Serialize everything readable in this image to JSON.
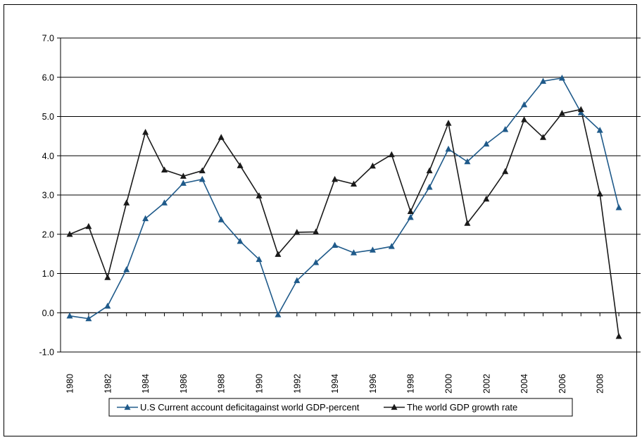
{
  "chart_data": {
    "type": "line",
    "title": "",
    "xlabel": "",
    "ylabel": "",
    "ylim": [
      -1.0,
      7.0
    ],
    "yticks": [
      "-1.0",
      "0.0",
      "1.0",
      "2.0",
      "3.0",
      "4.0",
      "5.0",
      "6.0",
      "7.0"
    ],
    "x": [
      1980,
      1981,
      1982,
      1983,
      1984,
      1985,
      1986,
      1987,
      1988,
      1989,
      1990,
      1991,
      1992,
      1993,
      1994,
      1995,
      1996,
      1997,
      1998,
      1999,
      2000,
      2001,
      2002,
      2003,
      2004,
      2005,
      2006,
      2007,
      2008,
      2009
    ],
    "xtick_labels": [
      "1980",
      "1982",
      "1984",
      "1986",
      "1988",
      "1990",
      "1992",
      "1994",
      "1996",
      "1998",
      "2000",
      "2002",
      "2004",
      "2006",
      "2008"
    ],
    "grid": "horizontal",
    "legend_position": "bottom",
    "series": [
      {
        "name": "U.S Current account deficitagainst world GDP-percent",
        "color": "#1f5a8a",
        "values": [
          -0.08,
          -0.15,
          0.17,
          1.1,
          2.4,
          2.8,
          3.3,
          3.4,
          2.37,
          1.82,
          1.36,
          -0.05,
          0.82,
          1.28,
          1.72,
          1.53,
          1.6,
          1.69,
          2.43,
          3.2,
          4.17,
          3.85,
          4.3,
          4.67,
          5.3,
          5.9,
          5.98,
          5.1,
          4.65,
          2.68
        ]
      },
      {
        "name": "The world GDP growth rate",
        "color": "#1a1a1a",
        "values": [
          2.0,
          2.2,
          0.9,
          2.8,
          4.6,
          3.64,
          3.48,
          3.62,
          4.47,
          3.75,
          2.98,
          1.49,
          2.05,
          2.06,
          3.4,
          3.28,
          3.74,
          4.03,
          2.58,
          3.62,
          4.83,
          2.28,
          2.9,
          3.6,
          4.92,
          4.47,
          5.08,
          5.18,
          3.03,
          -0.6
        ]
      }
    ]
  }
}
